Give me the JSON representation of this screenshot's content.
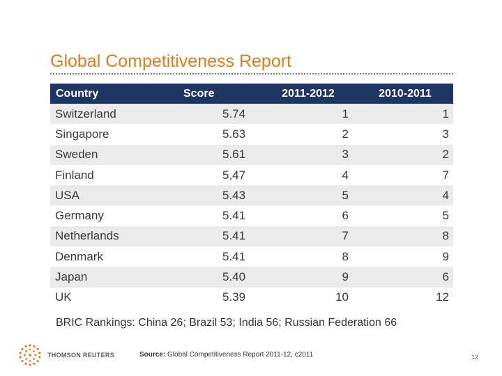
{
  "slide": {
    "title": "Global Competitiveness Report"
  },
  "table": {
    "headers": [
      "Country",
      "Score",
      "2011-2012",
      "2010-2011"
    ],
    "rows": [
      [
        "Switzerland",
        "5.74",
        "1",
        "1"
      ],
      [
        "Singapore",
        "5.63",
        "2",
        "3"
      ],
      [
        "Sweden",
        "5.61",
        "3",
        "2"
      ],
      [
        "Finland",
        "5,47",
        "4",
        "7"
      ],
      [
        "USA",
        "5.43",
        "5",
        "4"
      ],
      [
        "Germany",
        "5.41",
        "6",
        "5"
      ],
      [
        "Netherlands",
        "5.41",
        "7",
        "8"
      ],
      [
        "Denmark",
        "5.41",
        "8",
        "9"
      ],
      [
        "Japan",
        "5.40",
        "9",
        "6"
      ],
      [
        "UK",
        "5.39",
        "10",
        "12"
      ]
    ]
  },
  "bric_note": "BRIC Rankings: China 26; Brazil 53; India 56; Russian Federation 66",
  "footer": {
    "logo_text": "THOMSON REUTERS",
    "logo_icon": "thomson-reuters-dot-globe",
    "source_label": "Source:",
    "source_text": "Global Competitiveness Report 2011-12, c2011",
    "page_number": "12"
  },
  "colors": {
    "title": "#e07b22",
    "header_bg": "#1f3563",
    "header_text": "#ffffff",
    "row_alt_bg": "#eaeaea",
    "logo_dots": "#e07b22"
  }
}
